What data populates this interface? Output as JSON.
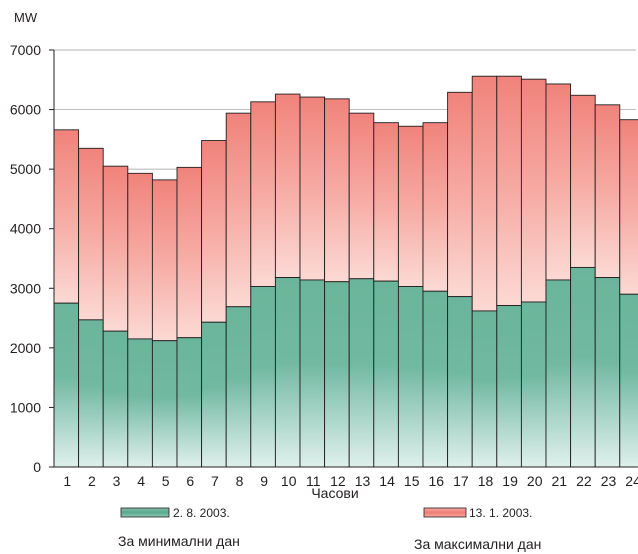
{
  "chart_data": {
    "type": "bar",
    "ylabel": "MW",
    "xlabel": "Часови",
    "ylim": [
      0,
      7000
    ],
    "yticks": [
      0,
      1000,
      2000,
      3000,
      4000,
      5000,
      6000,
      7000
    ],
    "categories": [
      "1",
      "2",
      "3",
      "4",
      "5",
      "6",
      "7",
      "8",
      "9",
      "10",
      "11",
      "12",
      "13",
      "14",
      "15",
      "16",
      "17",
      "18",
      "19",
      "20",
      "21",
      "22",
      "23",
      "24"
    ],
    "series": [
      {
        "name": "2. 8. 2003.",
        "color": "#5faf96",
        "values": [
          2750,
          2470,
          2280,
          2150,
          2120,
          2170,
          2430,
          2690,
          3030,
          3180,
          3140,
          3110,
          3160,
          3120,
          3030,
          2950,
          2860,
          2620,
          2710,
          2770,
          3140,
          3350,
          3180,
          2900
        ]
      },
      {
        "name": "13. 1. 2003.",
        "color": "#f07f77",
        "values": [
          5660,
          5350,
          5050,
          4930,
          4820,
          5030,
          5480,
          5940,
          6130,
          6260,
          6210,
          6180,
          5940,
          5780,
          5720,
          5780,
          6290,
          6560,
          6560,
          6510,
          6430,
          6240,
          6080,
          5830
        ]
      }
    ],
    "grid": true,
    "legend": [
      {
        "label": "2. 8. 2003.",
        "caption": "За минимални дан"
      },
      {
        "label": "13. 1. 2003.",
        "caption": "За максимални дан"
      }
    ],
    "legend_position": "bottom"
  }
}
